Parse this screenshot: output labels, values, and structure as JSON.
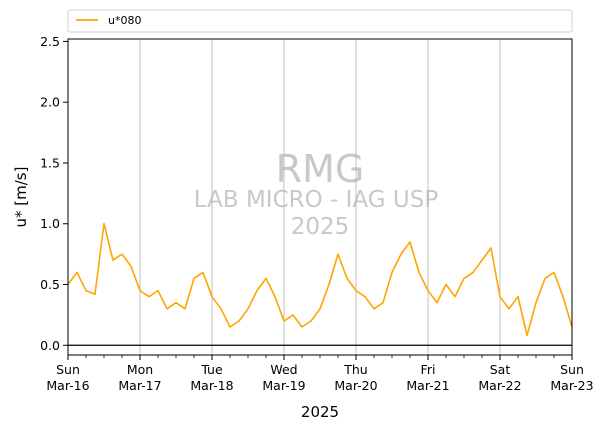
{
  "chart_data": {
    "type": "line",
    "xlabel": "2025",
    "ylabel": "u* [m/s]",
    "ylim": [
      -0.08,
      2.52
    ],
    "xlim": [
      "2025-03-16",
      "2025-03-23"
    ],
    "yticks": [
      "0.0",
      "0.5",
      "1.0",
      "1.5",
      "2.0",
      "2.5"
    ],
    "xticks": [
      {
        "day": "Sun",
        "date": "Mar-16"
      },
      {
        "day": "Mon",
        "date": "Mar-17"
      },
      {
        "day": "Tue",
        "date": "Mar-18"
      },
      {
        "day": "Wed",
        "date": "Mar-19"
      },
      {
        "day": "Thu",
        "date": "Mar-20"
      },
      {
        "day": "Fri",
        "date": "Mar-21"
      },
      {
        "day": "Sat",
        "date": "Mar-22"
      },
      {
        "day": "Sun",
        "date": "Mar-23"
      }
    ],
    "grid": "vertical",
    "zero_line": true,
    "legend": "top",
    "watermark": [
      "RMG",
      "LAB MICRO - IAG USP",
      "2025"
    ],
    "series": [
      {
        "name": "u*080",
        "color": "#FFA500",
        "x": [
          "2025-03-16 00:00",
          "2025-03-16 03:00",
          "2025-03-16 06:00",
          "2025-03-16 09:00",
          "2025-03-16 12:00",
          "2025-03-16 15:00",
          "2025-03-16 18:00",
          "2025-03-16 21:00",
          "2025-03-17 00:00",
          "2025-03-17 03:00",
          "2025-03-17 06:00",
          "2025-03-17 09:00",
          "2025-03-17 12:00",
          "2025-03-17 15:00",
          "2025-03-17 18:00",
          "2025-03-17 21:00",
          "2025-03-18 00:00",
          "2025-03-18 03:00",
          "2025-03-18 06:00",
          "2025-03-18 09:00",
          "2025-03-18 12:00",
          "2025-03-18 15:00",
          "2025-03-18 18:00",
          "2025-03-18 21:00",
          "2025-03-19 00:00",
          "2025-03-19 03:00",
          "2025-03-19 06:00",
          "2025-03-19 09:00",
          "2025-03-19 12:00",
          "2025-03-19 15:00",
          "2025-03-19 18:00",
          "2025-03-19 21:00",
          "2025-03-20 00:00",
          "2025-03-20 03:00",
          "2025-03-20 06:00",
          "2025-03-20 09:00",
          "2025-03-20 12:00",
          "2025-03-20 15:00",
          "2025-03-20 18:00",
          "2025-03-20 21:00",
          "2025-03-21 00:00",
          "2025-03-21 03:00",
          "2025-03-21 06:00",
          "2025-03-21 09:00",
          "2025-03-21 12:00",
          "2025-03-21 15:00",
          "2025-03-21 18:00",
          "2025-03-21 21:00",
          "2025-03-22 00:00",
          "2025-03-22 03:00",
          "2025-03-22 06:00",
          "2025-03-22 09:00",
          "2025-03-22 12:00",
          "2025-03-22 15:00",
          "2025-03-22 18:00",
          "2025-03-22 21:00",
          "2025-03-23 00:00"
        ],
        "y": [
          0.5,
          0.6,
          0.45,
          0.42,
          1.0,
          0.7,
          0.75,
          0.65,
          0.45,
          0.4,
          0.45,
          0.3,
          0.35,
          0.3,
          0.55,
          0.6,
          0.4,
          0.3,
          0.15,
          0.2,
          0.3,
          0.45,
          0.55,
          0.4,
          0.2,
          0.25,
          0.15,
          0.2,
          0.3,
          0.5,
          0.75,
          0.55,
          0.45,
          0.4,
          0.3,
          0.35,
          0.6,
          0.75,
          0.85,
          0.6,
          0.45,
          0.35,
          0.5,
          0.4,
          0.55,
          0.6,
          0.7,
          0.8,
          0.4,
          0.3,
          0.4,
          0.08,
          0.35,
          0.55,
          0.6,
          0.4,
          0.15
        ]
      }
    ]
  }
}
